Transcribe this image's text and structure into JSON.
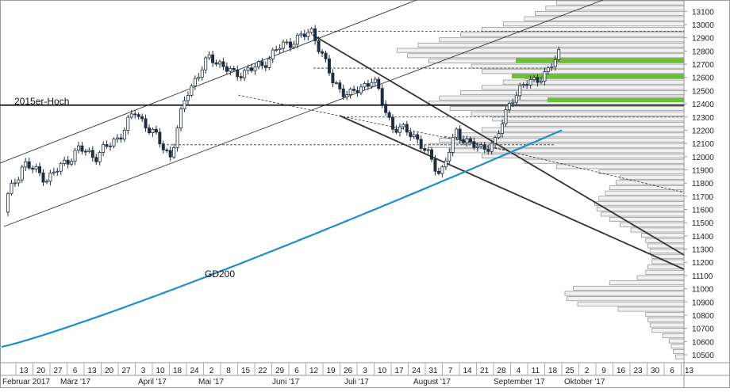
{
  "chart_data": {
    "type": "candlestick",
    "annotations": {
      "resistance_label": "2015er-Hoch",
      "ma_label": "GD200"
    },
    "y_ticks": [
      10500,
      10600,
      10700,
      10800,
      10900,
      11000,
      11100,
      11200,
      11300,
      11400,
      11500,
      11600,
      11700,
      11800,
      11900,
      12000,
      12100,
      12200,
      12300,
      12400,
      12500,
      12600,
      12700,
      12800,
      12900,
      13000,
      13100
    ],
    "ylim": [
      10440,
      13150
    ],
    "x_day_labels": [
      "13",
      "20",
      "27",
      "6",
      "13",
      "20",
      "27",
      "3",
      "10",
      "18",
      "24",
      "2",
      "8",
      "15",
      "22",
      "29",
      "6",
      "12",
      "19",
      "26",
      "3",
      "10",
      "17",
      "24",
      "31",
      "7",
      "14",
      "21",
      "28",
      "4",
      "11",
      "18",
      "25",
      "2",
      "9",
      "16",
      "23",
      "30",
      "6",
      "13"
    ],
    "x_month_labels": [
      "Februar 2017",
      "März '17",
      "April '17",
      "Mai '17",
      "Juni '17",
      "Juli '17",
      "August '17",
      "September '17",
      "Oktober '17"
    ],
    "levels": {
      "high_2015": 12390,
      "dashed": [
        12950,
        12670,
        12300,
        12090
      ]
    },
    "price_summary": {
      "start_close": 11580,
      "peak": 12950,
      "august_low": 11870,
      "last_close": 12800
    },
    "gd200": {
      "start": 10560,
      "end": 12200
    },
    "highlight_zones": [
      12730,
      12610,
      12430
    ],
    "volume_profile": {
      "price_bins_start": 10480,
      "bin_step": 40,
      "lengths": [
        8,
        10,
        12,
        14,
        20,
        30,
        32,
        34,
        36,
        62,
        100,
        110,
        112,
        104,
        70,
        44,
        36,
        34,
        30,
        30,
        32,
        34,
        36,
        40,
        50,
        60,
        70,
        78,
        82,
        84,
        80,
        74,
        70,
        64,
        60,
        80,
        120,
        150,
        190,
        220,
        240,
        230,
        210,
        190,
        170,
        180,
        200,
        220,
        240,
        230,
        210,
        190,
        170,
        150,
        190,
        200,
        240,
        260,
        270,
        250,
        230,
        210,
        190,
        170,
        150,
        140,
        130,
        120,
        110,
        90,
        70,
        50
      ]
    }
  }
}
